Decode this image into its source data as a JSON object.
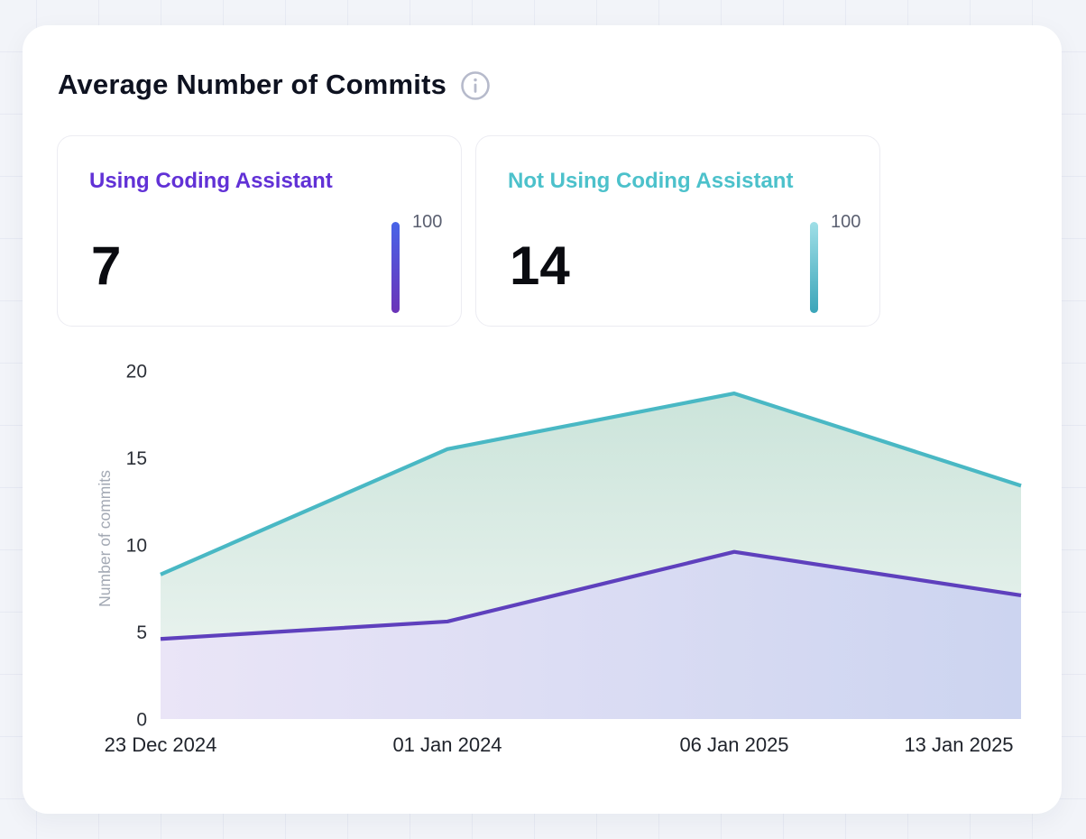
{
  "page": {
    "background_color": "#f2f4f9",
    "grid_line_color": "#e7eaf3",
    "card_color": "#ffffff"
  },
  "header": {
    "title": "Average Number of Commits",
    "info_icon": "info-circle"
  },
  "stats": [
    {
      "label": "Using Coding Assistant",
      "value": "7",
      "scale_max": "100",
      "label_color": "#6131d6",
      "bar_gradient_top": "#4864e8",
      "bar_gradient_bottom": "#6b33b8"
    },
    {
      "label": "Not Using Coding Assistant",
      "value": "14",
      "scale_max": "100",
      "label_color": "#4cc1cb",
      "bar_gradient_top": "#9fdfe7",
      "bar_gradient_bottom": "#3ba5b9"
    }
  ],
  "chart_data": {
    "type": "area",
    "title": "Average Number of Commits",
    "x": [
      "23 Dec 2024",
      "01 Jan 2024",
      "06 Jan 2025",
      "13 Jan 2025"
    ],
    "series": [
      {
        "name": "Not Using Coding Assistant",
        "values": [
          8.3,
          15.5,
          18.7,
          13.4
        ],
        "line_color": "#49b8c4",
        "fill_from": "#cbe4da",
        "fill_to": "#f0f6f3",
        "fill_direction": "vertical"
      },
      {
        "name": "Using Coding Assistant",
        "values": [
          4.6,
          5.6,
          9.6,
          7.1
        ],
        "line_color": "#5e40bd",
        "fill_from": "#eae5f7",
        "fill_to": "#ccd4f0",
        "fill_direction": "horizontal"
      }
    ],
    "xlabel": "",
    "ylabel": "Number of commits",
    "ylim": [
      0,
      20
    ],
    "yticks": [
      0,
      5,
      10,
      15,
      20
    ],
    "grid": false,
    "legend_position": "none",
    "tick_label_color": "#2b2f37",
    "axis_title_color": "#a3a9b4"
  }
}
